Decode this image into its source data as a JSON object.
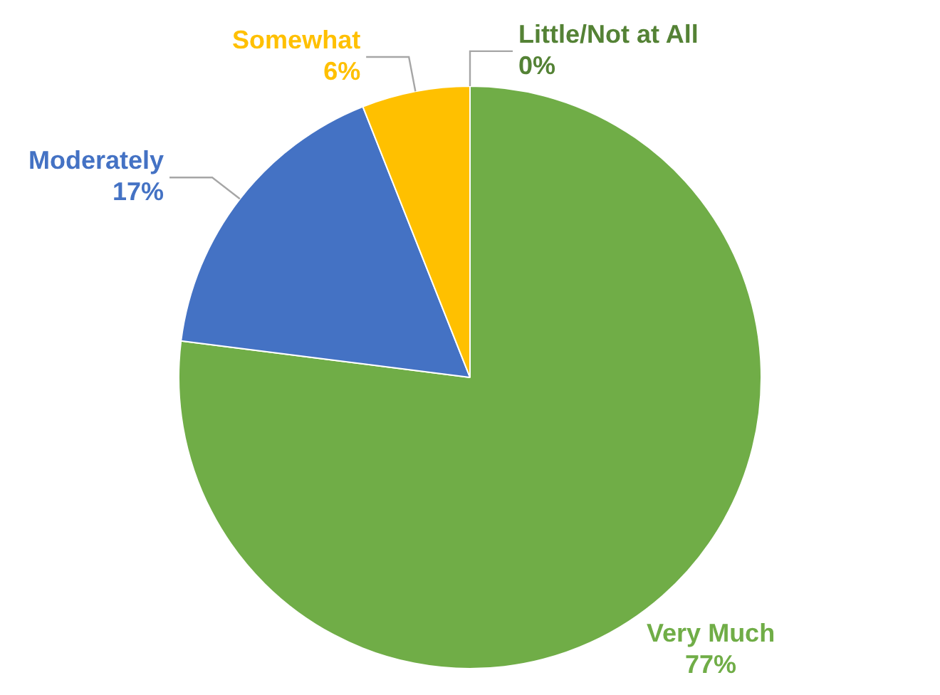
{
  "chart_data": {
    "type": "pie",
    "categories": [
      "Very Much",
      "Moderately",
      "Somewhat",
      "Little/Not at All"
    ],
    "values": [
      77,
      17,
      6,
      0
    ],
    "colors": [
      "#70ad47",
      "#4472c4",
      "#ffc000",
      "#548235"
    ],
    "value_labels": [
      "77%",
      "17%",
      "6%",
      "0%"
    ],
    "legend": false
  }
}
